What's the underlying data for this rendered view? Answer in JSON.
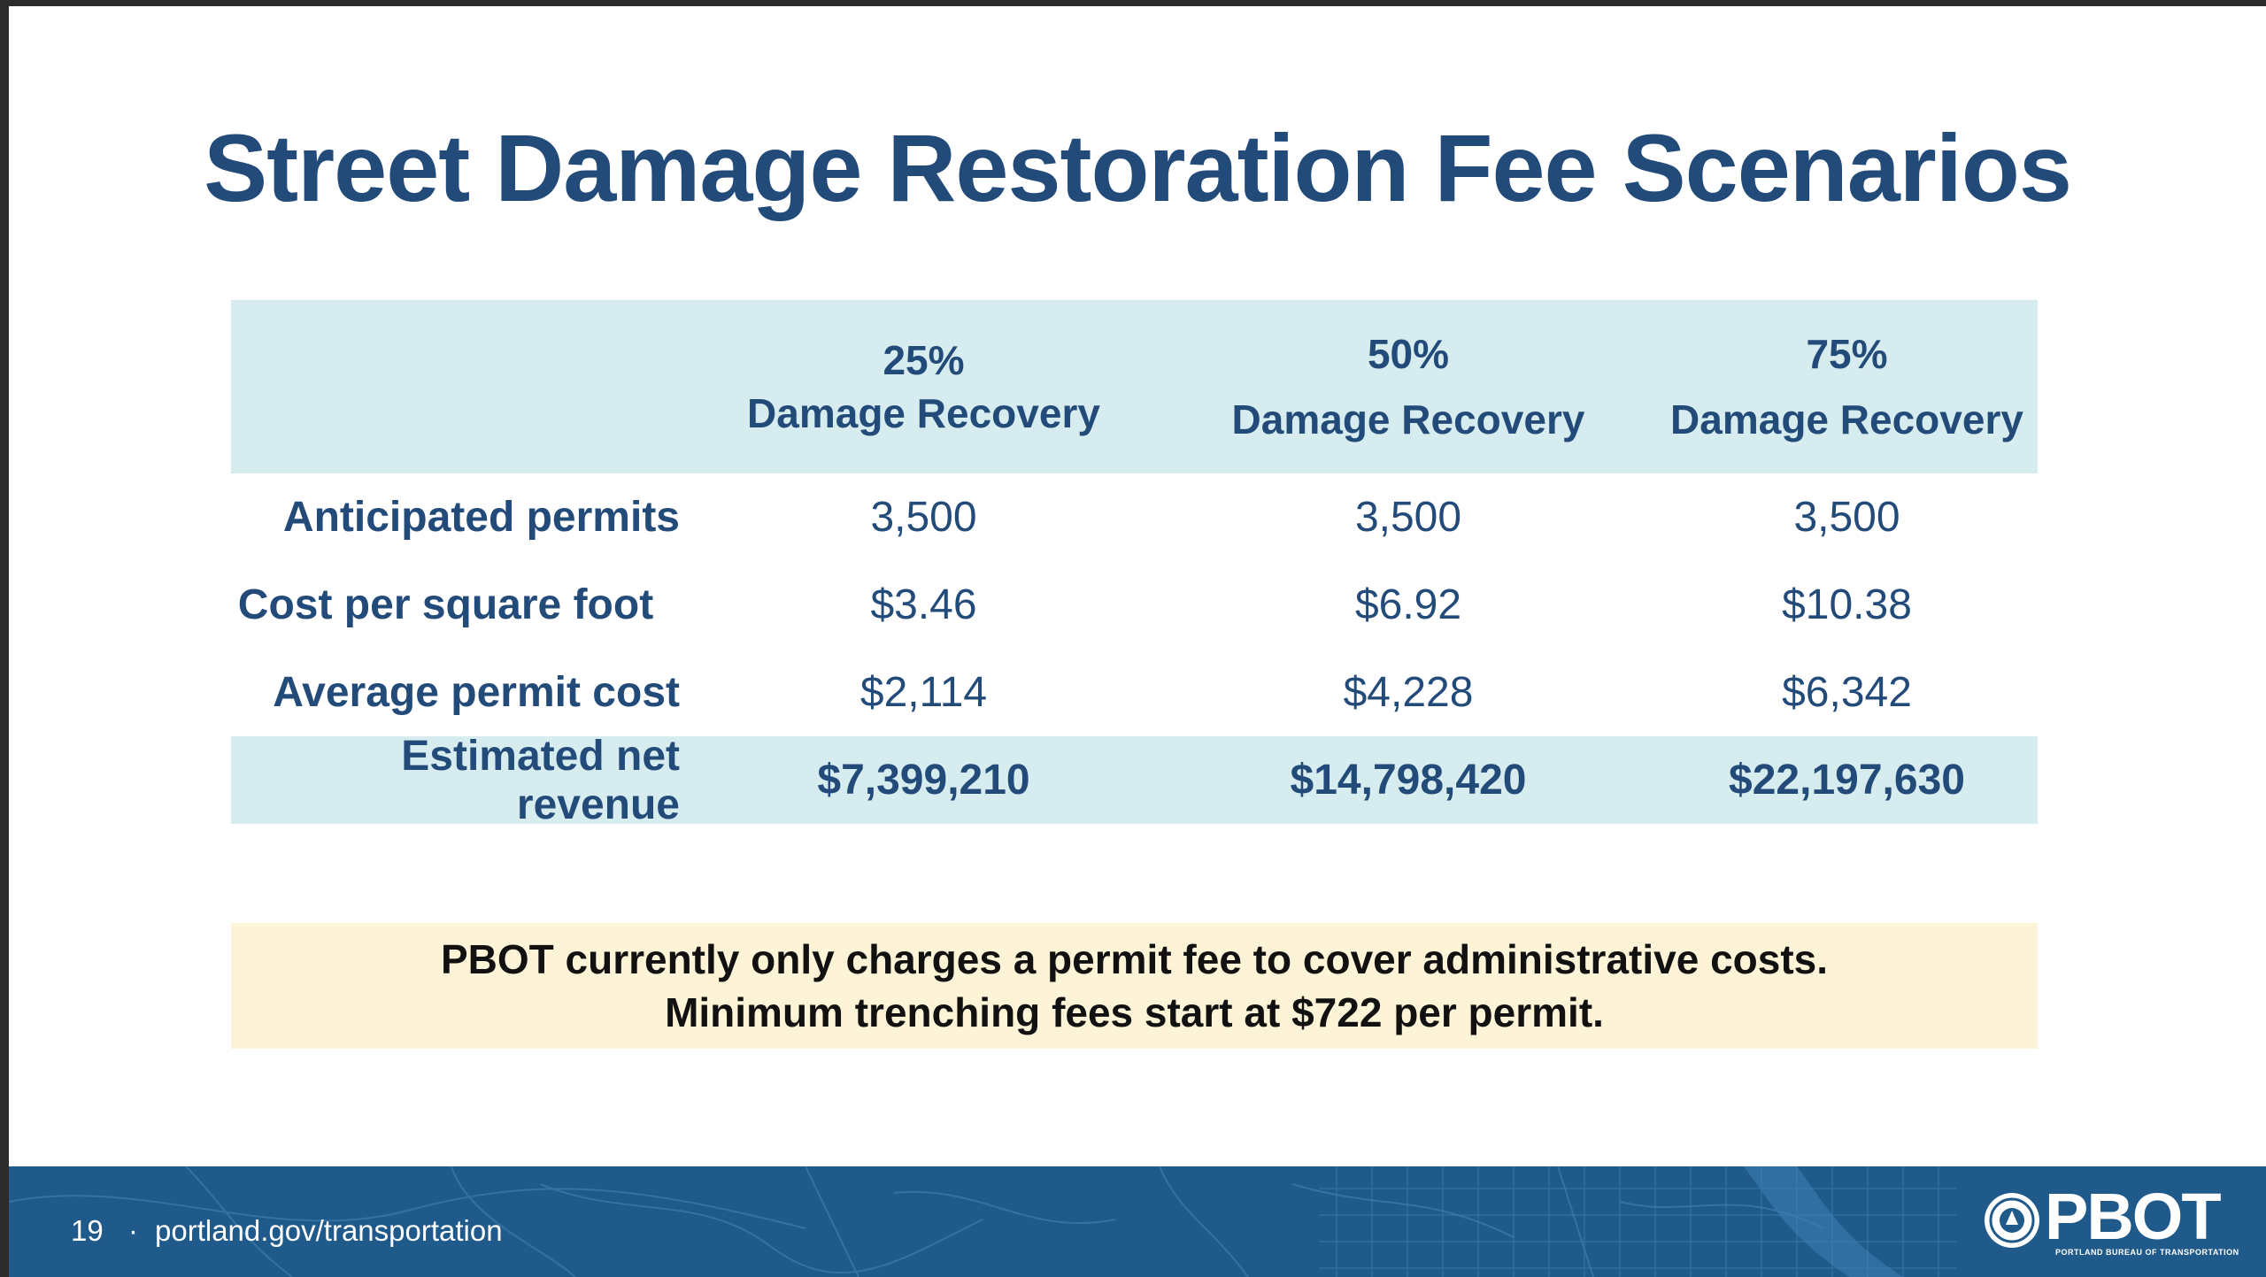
{
  "slide": {
    "title": "Street Damage Restoration Fee Scenarios"
  },
  "table": {
    "headers": [
      {
        "pct": "",
        "label": ""
      },
      {
        "pct": "25%",
        "label": "Damage Recovery"
      },
      {
        "pct": "50%",
        "label": "Damage Recovery"
      },
      {
        "pct": "75%",
        "label": "Damage Recovery"
      }
    ],
    "rows": [
      {
        "label": "Anticipated permits",
        "values": [
          "3,500",
          "3,500",
          "3,500"
        ]
      },
      {
        "label": "Cost per square foot",
        "values": [
          "$3.46",
          "$6.92",
          "$10.38"
        ]
      },
      {
        "label": "Average permit cost",
        "values": [
          "$2,114",
          "$4,228",
          "$6,342"
        ]
      },
      {
        "label": "Estimated net revenue",
        "values": [
          "$7,399,210",
          "$14,798,420",
          "$22,197,630"
        ]
      }
    ]
  },
  "note": {
    "line1": "PBOT currently only charges a permit fee to cover administrative costs.",
    "line2": "Minimum trenching fees start at $722 per permit."
  },
  "footer": {
    "page_number": "19",
    "separator": "·",
    "website": "portland.gov/transportation",
    "logo_text": "PBOT",
    "logo_subtext": "PORTLAND BUREAU OF TRANSPORTATION"
  },
  "colors": {
    "title": "#234b7a",
    "table_highlight": "#d7ecef",
    "note_background": "#fdf3d6",
    "footer_background": "#1f5a8a"
  }
}
